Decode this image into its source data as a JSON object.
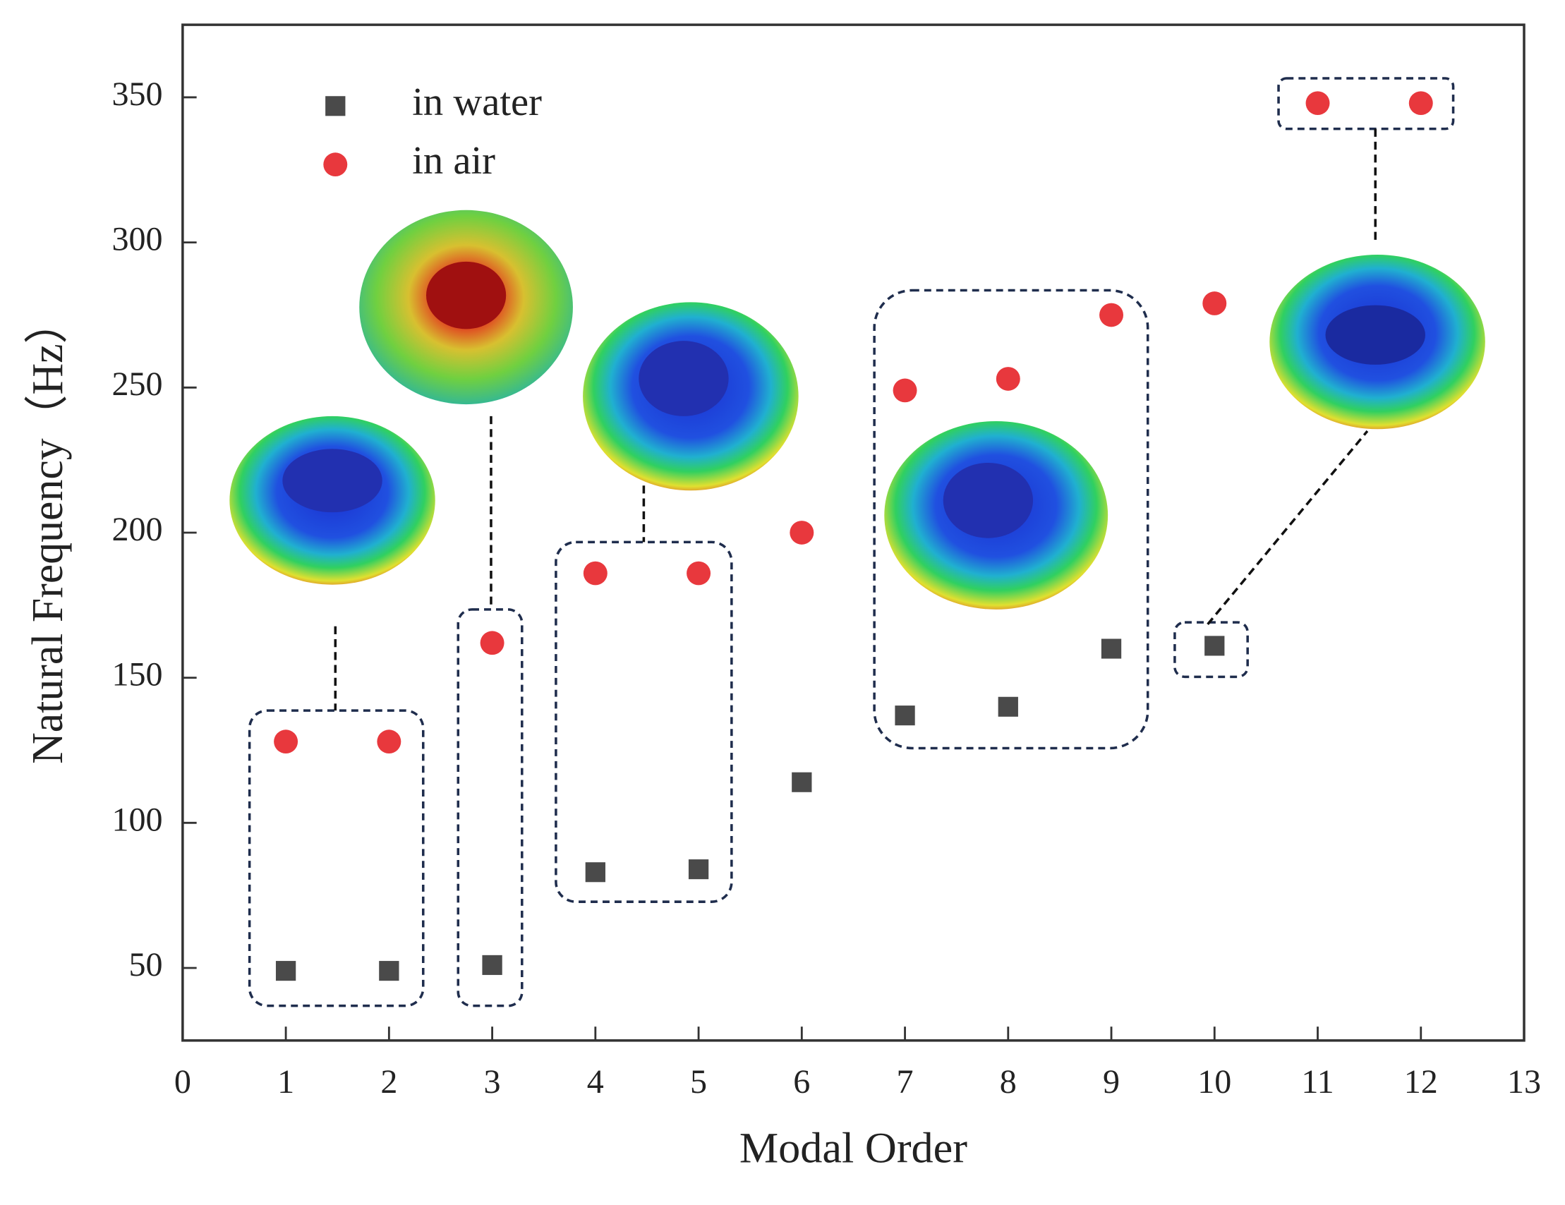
{
  "chart_data": {
    "type": "scatter",
    "xlabel": "Modal Order",
    "ylabel": "Natural Frequency（Hz）",
    "x": [
      1,
      2,
      3,
      4,
      5,
      6,
      7,
      8,
      9,
      10,
      11,
      12
    ],
    "series": [
      {
        "name": "in water",
        "color": "#4a4a4a",
        "marker": "square",
        "values": [
          49,
          49,
          51,
          83,
          84,
          114,
          137,
          140,
          160,
          161,
          null,
          null
        ]
      },
      {
        "name": "in air",
        "color": "#e8383d",
        "marker": "circle",
        "values": [
          128,
          128,
          162,
          186,
          186,
          200,
          249,
          253,
          275,
          279,
          348,
          348
        ]
      }
    ],
    "xlim": [
      0,
      13
    ],
    "xticks": [
      0,
      1,
      2,
      3,
      4,
      5,
      6,
      7,
      8,
      9,
      10,
      11,
      12,
      13
    ],
    "ylim": [
      25,
      375
    ],
    "yticks": [
      50,
      100,
      150,
      200,
      250,
      300,
      350
    ],
    "legend": "upper left",
    "grid": false
  }
}
